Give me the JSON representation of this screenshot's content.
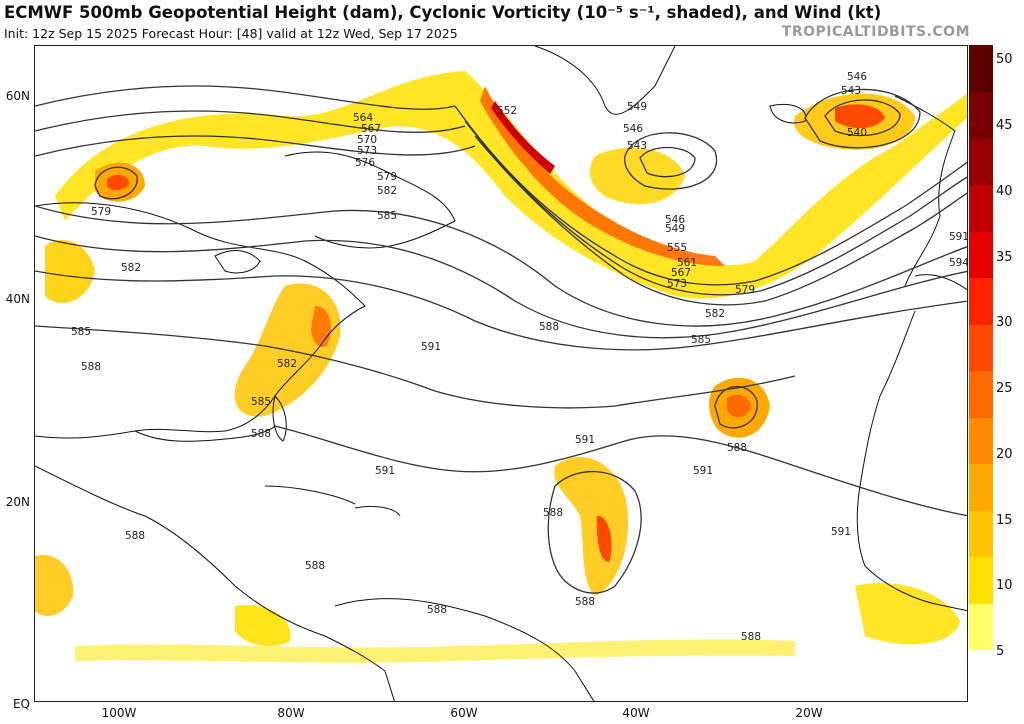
{
  "header": {
    "title": "ECMWF 500mb Geopotential Height (dam), Cyclonic Vorticity (10⁻⁵ s⁻¹, shaded), and Wind (kt)",
    "subtitle": "Init: 12z Sep 15 2025    Forecast Hour: [48]    valid at 12z Wed, Sep 17 2025",
    "site": "TROPICALTIDBITS.COM"
  },
  "axes": {
    "lat_labels": [
      "60N",
      "40N",
      "20N",
      "EQ"
    ],
    "lon_labels": [
      "100W",
      "80W",
      "60W",
      "40W",
      "20W"
    ]
  },
  "colorbar": {
    "labels": [
      "50",
      "45",
      "40",
      "35",
      "30",
      "25",
      "20",
      "15",
      "10",
      "5"
    ],
    "colors": [
      "#ffffff",
      "#ffff66",
      "#ffe000",
      "#ffc400",
      "#ffa800",
      "#ff8a00",
      "#ff6a00",
      "#ff4a00",
      "#ff2400",
      "#e80000",
      "#c00000",
      "#980000",
      "#780000",
      "#5a0000"
    ]
  },
  "height_labels": [
    "546",
    "543",
    "540",
    "549",
    "546",
    "543",
    "552",
    "564",
    "567",
    "570",
    "573",
    "576",
    "579",
    "582",
    "585",
    "579",
    "582",
    "585",
    "588",
    "546",
    "549",
    "555",
    "561",
    "567",
    "573",
    "579",
    "582",
    "585",
    "588",
    "591",
    "582",
    "585",
    "588",
    "591",
    "591",
    "591",
    "588",
    "588",
    "588",
    "588",
    "588",
    "588",
    "591",
    "594",
    "591",
    "588"
  ]
}
